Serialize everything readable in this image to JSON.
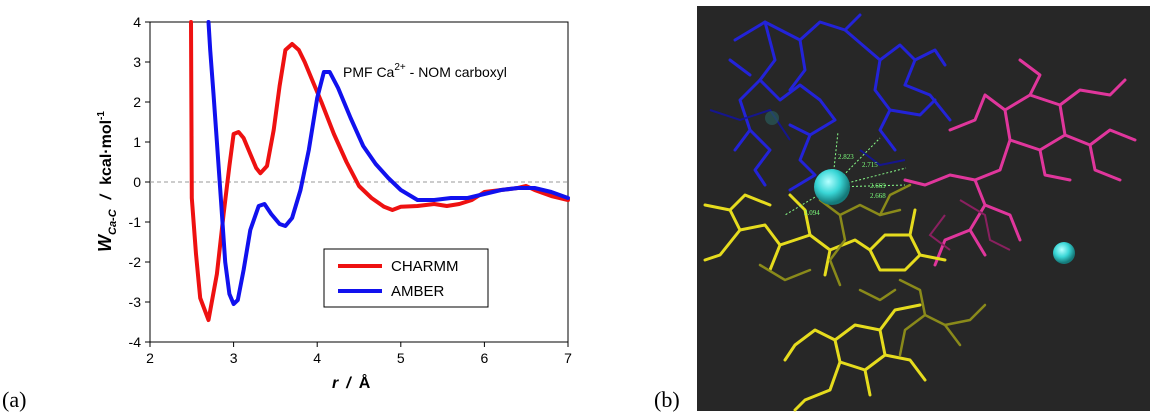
{
  "panels": {
    "a_label": "(a)",
    "b_label": "(b)"
  },
  "chart_data": {
    "type": "line",
    "title": "PMF Ca",
    "title_sup": "2+",
    "title_rest": " - NOM carboxyl",
    "xlabel_parts": [
      "r",
      "/",
      "Å"
    ],
    "ylabel_parts": [
      "W",
      "Ca-C",
      "/",
      "kcal·mol",
      "-1"
    ],
    "xlim": [
      2,
      7
    ],
    "ylim": [
      -4,
      4
    ],
    "xticks": [
      2,
      3,
      4,
      5,
      6,
      7
    ],
    "yticks": [
      -4,
      -3,
      -2,
      -1,
      0,
      1,
      2,
      3,
      4
    ],
    "xtick_labels": [
      "2",
      "3",
      "4",
      "5",
      "6",
      "7"
    ],
    "ytick_labels": [
      "-4",
      "-3",
      "-2",
      "-1",
      "0",
      "1",
      "2",
      "3",
      "4"
    ],
    "zero_line": "dashed",
    "grid": false,
    "legend_position": "lower-right",
    "series": [
      {
        "name": "CHARMM",
        "color": "#ee1111",
        "points": [
          [
            2.49,
            4.0
          ],
          [
            2.5,
            -0.4
          ],
          [
            2.55,
            -1.8
          ],
          [
            2.6,
            -2.9
          ],
          [
            2.7,
            -3.45
          ],
          [
            2.8,
            -2.3
          ],
          [
            2.88,
            -0.8
          ],
          [
            2.95,
            0.4
          ],
          [
            3.0,
            1.2
          ],
          [
            3.06,
            1.25
          ],
          [
            3.12,
            1.1
          ],
          [
            3.2,
            0.7
          ],
          [
            3.27,
            0.35
          ],
          [
            3.32,
            0.22
          ],
          [
            3.4,
            0.4
          ],
          [
            3.48,
            1.3
          ],
          [
            3.55,
            2.4
          ],
          [
            3.62,
            3.3
          ],
          [
            3.7,
            3.45
          ],
          [
            3.78,
            3.3
          ],
          [
            3.85,
            3.0
          ],
          [
            3.95,
            2.5
          ],
          [
            4.05,
            2.0
          ],
          [
            4.2,
            1.2
          ],
          [
            4.35,
            0.5
          ],
          [
            4.5,
            -0.1
          ],
          [
            4.65,
            -0.4
          ],
          [
            4.8,
            -0.62
          ],
          [
            4.9,
            -0.7
          ],
          [
            5.0,
            -0.62
          ],
          [
            5.2,
            -0.6
          ],
          [
            5.4,
            -0.55
          ],
          [
            5.55,
            -0.6
          ],
          [
            5.7,
            -0.55
          ],
          [
            5.85,
            -0.45
          ],
          [
            6.0,
            -0.25
          ],
          [
            6.2,
            -0.2
          ],
          [
            6.4,
            -0.15
          ],
          [
            6.5,
            -0.1
          ],
          [
            6.6,
            -0.2
          ],
          [
            6.8,
            -0.35
          ],
          [
            7.0,
            -0.45
          ]
        ]
      },
      {
        "name": "AMBER",
        "color": "#1111ee",
        "points": [
          [
            2.7,
            4.0
          ],
          [
            2.72,
            3.3
          ],
          [
            2.76,
            2.2
          ],
          [
            2.8,
            1.0
          ],
          [
            2.85,
            -0.5
          ],
          [
            2.9,
            -2.0
          ],
          [
            2.95,
            -2.8
          ],
          [
            3.0,
            -3.05
          ],
          [
            3.05,
            -2.95
          ],
          [
            3.12,
            -2.2
          ],
          [
            3.2,
            -1.2
          ],
          [
            3.3,
            -0.6
          ],
          [
            3.37,
            -0.55
          ],
          [
            3.45,
            -0.8
          ],
          [
            3.55,
            -1.05
          ],
          [
            3.62,
            -1.1
          ],
          [
            3.7,
            -0.9
          ],
          [
            3.8,
            -0.2
          ],
          [
            3.9,
            0.8
          ],
          [
            4.0,
            2.1
          ],
          [
            4.08,
            2.75
          ],
          [
            4.15,
            2.75
          ],
          [
            4.25,
            2.35
          ],
          [
            4.4,
            1.6
          ],
          [
            4.55,
            0.9
          ],
          [
            4.7,
            0.45
          ],
          [
            4.85,
            0.1
          ],
          [
            5.0,
            -0.2
          ],
          [
            5.2,
            -0.45
          ],
          [
            5.4,
            -0.45
          ],
          [
            5.6,
            -0.4
          ],
          [
            5.8,
            -0.4
          ],
          [
            6.0,
            -0.3
          ],
          [
            6.2,
            -0.2
          ],
          [
            6.4,
            -0.15
          ],
          [
            6.6,
            -0.15
          ],
          [
            6.8,
            -0.25
          ],
          [
            7.0,
            -0.4
          ]
        ]
      }
    ]
  },
  "molecule": {
    "background": "#272727",
    "distances": [
      "2.823",
      "2.715",
      "2.669",
      "2.668",
      "3.094"
    ],
    "colors": {
      "blue": "#2323d8",
      "magenta": "#e0369c",
      "yellow": "#e6dc1e",
      "olive": "#8a8a1a",
      "ion": "#39d6d6",
      "hbond": "#8aff8a"
    }
  }
}
